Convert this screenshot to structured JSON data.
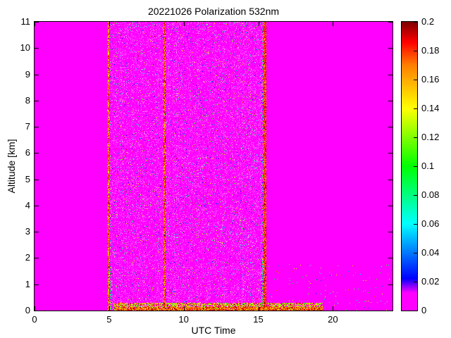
{
  "chart_data": {
    "type": "heatmap",
    "title": "20221026 Polarization 532nm",
    "xlabel": "UTC Time",
    "ylabel": "Altitude [km]",
    "xlim": [
      0,
      24
    ],
    "ylim": [
      0,
      11
    ],
    "xticks": [
      0,
      5,
      10,
      15,
      20
    ],
    "yticks": [
      0,
      1,
      2,
      3,
      4,
      5,
      6,
      7,
      8,
      9,
      10,
      11
    ],
    "grid": false,
    "background_value": 0,
    "background_color": "#FF00FF",
    "seed": 42,
    "colorbar": {
      "position": "right",
      "min": 0,
      "max": 0.2,
      "ticks": [
        0,
        0.02,
        0.04,
        0.06,
        0.08,
        0.1,
        0.12,
        0.14,
        0.16,
        0.18,
        0.2
      ],
      "colormap_stops": [
        {
          "t": 0.0,
          "color": "#FF00FF"
        },
        {
          "t": 0.06,
          "color": "#FF00FF"
        },
        {
          "t": 0.11,
          "color": "#0000FF"
        },
        {
          "t": 0.3,
          "color": "#00FFFF"
        },
        {
          "t": 0.5,
          "color": "#00FF00"
        },
        {
          "t": 0.7,
          "color": "#FFFF00"
        },
        {
          "t": 0.85,
          "color": "#FF8000"
        },
        {
          "t": 0.93,
          "color": "#FF0000"
        },
        {
          "t": 1.0,
          "color": "#7F0000"
        }
      ]
    },
    "measurement_period": {
      "t_start": 4.88,
      "t_end": 15.55,
      "speckle_prob": 0.035,
      "pink_noise_prob": 0.5
    },
    "dark_streaks": [
      {
        "t": 4.97,
        "width": 0.1,
        "density": 0.8,
        "v_min": 0.14,
        "v_max": 0.2
      },
      {
        "t": 8.7,
        "width": 0.13,
        "density": 0.85,
        "v_min": 0.15,
        "v_max": 0.2
      },
      {
        "t": 15.45,
        "width": 0.22,
        "density": 0.95,
        "v_min": 0.16,
        "v_max": 0.2
      }
    ],
    "bright_columns": [
      {
        "t": 5.08,
        "width": 0.2,
        "alt_max": 1.7,
        "density": 0.5
      },
      {
        "t": 5.05,
        "width": 0.12,
        "alt_max": 11,
        "density": 0.12
      },
      {
        "t": 15.3,
        "width": 0.14,
        "alt_max": 11,
        "density": 0.3
      },
      {
        "t": 15.32,
        "width": 0.18,
        "alt_max": 2.0,
        "density": 0.5
      }
    ],
    "surface_bands": [
      {
        "t_start": 5.3,
        "t_end": 19.3,
        "alt_max": 0.3,
        "density": 0.7,
        "v_min": 0.1,
        "v_max": 0.2
      },
      {
        "t_start": 5.5,
        "t_end": 19.3,
        "alt_max": 0.13,
        "density": 0.85,
        "v_min": 0.15,
        "v_max": 0.2
      }
    ],
    "post_period_speckle": {
      "t_start": 15.7,
      "t_end": 24,
      "alt_max": 1.8,
      "prob": 0.012
    },
    "pre_period_speckle": {
      "alt_max": 2,
      "prob": 0.0003
    }
  }
}
